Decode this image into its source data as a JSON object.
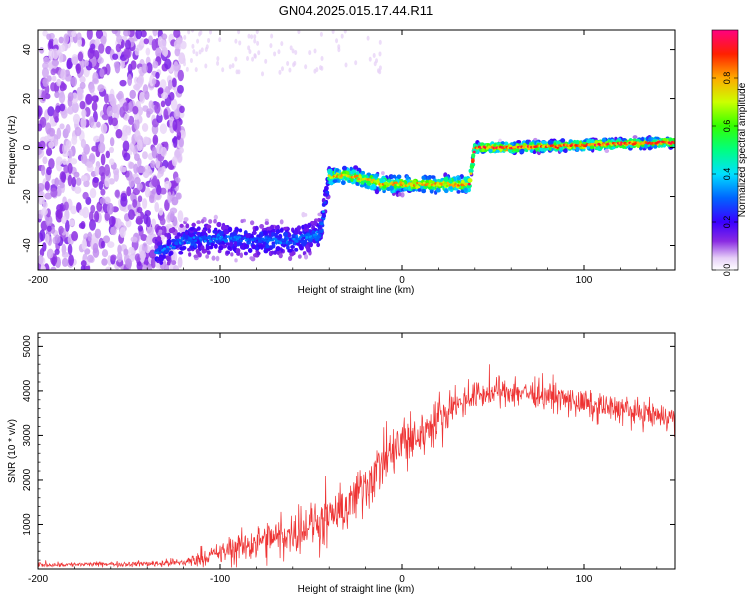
{
  "figure_title": "GN04.2025.015.17.44.R11",
  "chart_data": [
    {
      "type": "heatmap",
      "title": "GN04.2025.015.17.44.R11",
      "xlabel": "Height of straight line (km)",
      "ylabel": "Frequency (Hz)",
      "xlim": [
        -200,
        150
      ],
      "ylim": [
        -50,
        48
      ],
      "xticks": [
        -200,
        -100,
        0,
        100
      ],
      "yticks": [
        -40,
        -20,
        0,
        20,
        40
      ],
      "colorbar": {
        "label": "Normalized spectral amplitude",
        "range": [
          0,
          1
        ],
        "ticks": [
          0.0,
          0.2,
          0.4,
          0.6,
          0.8
        ],
        "colormap": "rainbow (white-violet-blue-cyan-green-yellow-orange-red-magenta)"
      },
      "features": [
        {
          "x_range": [
            -200,
            -120
          ],
          "freq_range": [
            -50,
            48
          ],
          "level": 0.05,
          "kind": "diffuse noise"
        },
        {
          "x_range": [
            -135,
            -40
          ],
          "freq_center": -38,
          "freq_width": 10,
          "level": 0.3
        },
        {
          "x_range": [
            -40,
            37
          ],
          "freq_center": -14,
          "freq_width": 5,
          "level": 0.75
        },
        {
          "x_range": [
            37,
            150
          ],
          "freq_center": 1,
          "freq_width": 3,
          "level": 0.85
        }
      ],
      "ridge": {
        "x": [
          -135,
          -120,
          -100,
          -80,
          -60,
          -45,
          -40,
          -30,
          -20,
          -10,
          0,
          10,
          20,
          30,
          37,
          40,
          60,
          80,
          100,
          120,
          140,
          150
        ],
        "freq": [
          -43,
          -38,
          -37,
          -38,
          -38,
          -35,
          -12,
          -11,
          -13,
          -15,
          -15,
          -15,
          -15,
          -15,
          -15,
          0,
          0,
          0.5,
          1,
          1.5,
          2,
          2
        ]
      }
    },
    {
      "type": "line",
      "xlabel": "Height of straight line (km)",
      "ylabel": "SNR (10 * v/v)",
      "xlim": [
        -200,
        150
      ],
      "ylim": [
        0,
        5300
      ],
      "xticks": [
        -200,
        -100,
        0,
        100
      ],
      "yticks": [
        1000,
        2000,
        3000,
        4000,
        5000
      ],
      "color": "#ee3333",
      "series": [
        {
          "envelope": {
            "x": [
              -200,
              -180,
              -160,
              -140,
              -120,
              -110,
              -100,
              -90,
              -80,
              -70,
              -60,
              -50,
              -40,
              -30,
              -20,
              -10,
              0,
              10,
              20,
              30,
              40,
              50,
              60,
              70,
              80,
              90,
              100,
              110,
              120,
              130,
              140,
              150
            ],
            "mean": [
              100,
              100,
              110,
              120,
              150,
              250,
              350,
              500,
              600,
              700,
              800,
              1000,
              1100,
              1400,
              1900,
              2400,
              2800,
              3000,
              3400,
              3700,
              3900,
              3950,
              4000,
              3950,
              3900,
              3800,
              3700,
              3650,
              3600,
              3500,
              3450,
              3400
            ],
            "spread": [
              80,
              80,
              80,
              100,
              150,
              250,
              350,
              500,
              550,
              600,
              650,
              700,
              750,
              800,
              900,
              900,
              900,
              800,
              600,
              500,
              450,
              450,
              450,
              450,
              450,
              450,
              450,
              450,
              450,
              450,
              450,
              400
            ]
          }
        }
      ]
    }
  ]
}
